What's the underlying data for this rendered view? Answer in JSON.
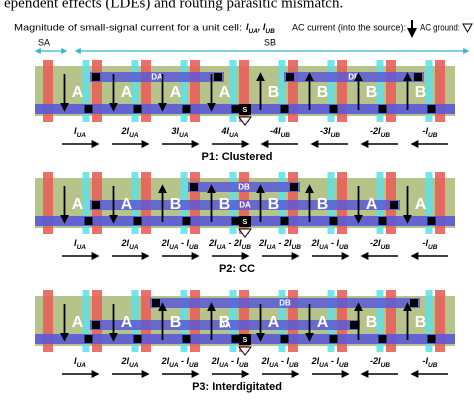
{
  "header_fragment": "ependent effects (LDEs) and routing parasitic mismatch.",
  "legend": {
    "magnitude_text": "Magnitude of  small-signal current for a unit cell:",
    "magnitude_symbols": "IUA, IUB",
    "ac_current": "AC current (into the source):",
    "ac_ground": "AC ground:"
  },
  "regions": {
    "sa": "SA",
    "sb": "SB"
  },
  "panels": [
    {
      "cells": [
        "A",
        "A",
        "A",
        "A",
        "B",
        "B",
        "B",
        "B"
      ],
      "top_bars": [
        "DA",
        "DB"
      ],
      "source": "S",
      "currents": [
        "IUA",
        "2IUA",
        "3IUA",
        "4IUA",
        "-4IUB",
        "-3IUB",
        "-2IUB",
        "-IUB"
      ],
      "caption": "P1: Clustered"
    },
    {
      "cells": [
        "A",
        "A",
        "B",
        "B",
        "B",
        "B",
        "A",
        "A"
      ],
      "top_bars": [
        "DB",
        "DA"
      ],
      "source": "S",
      "currents": [
        "IUA",
        "2IUA",
        "2IUA - IUB",
        "2IUA - 2IUB",
        "2IUA - 2IUB",
        "2IUA - IUB",
        "-2IUB",
        "-IUB"
      ],
      "caption": "P2: CC"
    },
    {
      "cells": [
        "A",
        "A",
        "B",
        "B",
        "A",
        "A",
        "B",
        "B"
      ],
      "top_bars": [
        "DB",
        "DA"
      ],
      "source": "S",
      "currents": [
        "IUA",
        "2IUA",
        "2IUA - IUB",
        "2IUA - IUB",
        "2IUA - IUB",
        "2IUA - IUB",
        "-2IUB",
        "-IUB"
      ],
      "caption": "P3: Interdigitated"
    }
  ]
}
